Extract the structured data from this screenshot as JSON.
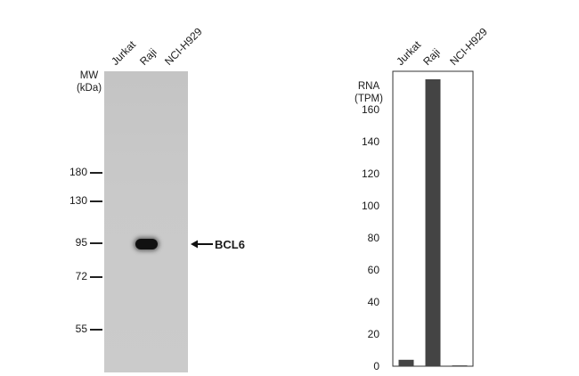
{
  "western_blot": {
    "lanes": [
      "Jurkat",
      "Raji",
      "NCI-H929"
    ],
    "mw_title_line1": "MW",
    "mw_title_line2": "(kDa)",
    "markers": [
      "180",
      "130",
      "95",
      "72",
      "55"
    ],
    "band_label": "BCL6",
    "band_lane": "Raji",
    "band_mw": 95
  },
  "chart_data": {
    "type": "bar",
    "title_line1": "RNA",
    "title_line2": "(TPM)",
    "categories": [
      "Jurkat",
      "Raji",
      "NCI-H929"
    ],
    "values": [
      4,
      179,
      0.5
    ],
    "ylim": [
      0,
      184
    ],
    "yticks": [
      "0",
      "20",
      "40",
      "60",
      "80",
      "100",
      "120",
      "140",
      "160"
    ],
    "bar_color": "#444444",
    "grid": false
  }
}
